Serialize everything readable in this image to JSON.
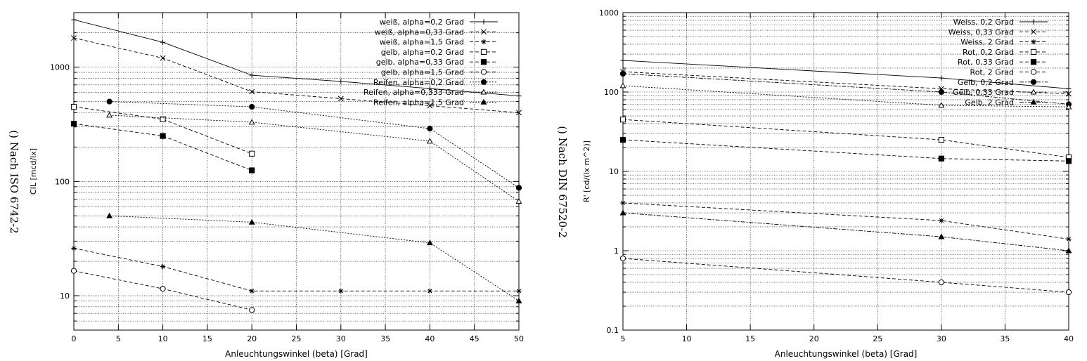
{
  "side_labels": {
    "left": "() Nach ISO 6742-2",
    "right": "() Nach DIN 67520-2"
  },
  "chart_data": [
    {
      "type": "line",
      "title": "",
      "xlabel": "Anleuchtungswinkel (beta) [Grad]",
      "ylabel": "CIL [mcd/lx]",
      "yscale": "log",
      "xlim": [
        0,
        50
      ],
      "ylim": [
        5,
        3000
      ],
      "xticks": [
        0,
        5,
        10,
        15,
        20,
        25,
        30,
        35,
        40,
        45,
        50
      ],
      "yticks": [
        10,
        100,
        1000
      ],
      "grid": true,
      "legend_position": "top-right",
      "series": [
        {
          "name": "weiß, alpha=0,2 Grad",
          "marker": "plus",
          "dash": "solid",
          "x": [
            0,
            10,
            20,
            30,
            40,
            50
          ],
          "y": [
            2600,
            1650,
            850,
            750,
            650,
            560
          ]
        },
        {
          "name": "weiß, alpha=0,33 Grad",
          "marker": "cross",
          "dash": "dashed",
          "x": [
            0,
            10,
            20,
            30,
            40,
            50
          ],
          "y": [
            1800,
            1200,
            610,
            530,
            460,
            400
          ]
        },
        {
          "name": "weiß, alpha=1,5 Grad",
          "marker": "star",
          "dash": "dashed",
          "x": [
            0,
            10,
            20,
            30,
            40,
            50
          ],
          "y": [
            26,
            18,
            11,
            11,
            11,
            11
          ]
        },
        {
          "name": "gelb, alpha=0,2 Grad",
          "marker": "open-square",
          "dash": "dashed",
          "x": [
            0,
            10,
            20
          ],
          "y": [
            450,
            350,
            175
          ]
        },
        {
          "name": "gelb, alpha=0,33 Grad",
          "marker": "filled-square",
          "dash": "dashed",
          "x": [
            0,
            10,
            20
          ],
          "y": [
            320,
            250,
            125
          ]
        },
        {
          "name": "gelb, alpha=1,5 Grad",
          "marker": "open-circle",
          "dash": "dashed",
          "x": [
            0,
            10,
            20
          ],
          "y": [
            16.5,
            11.5,
            7.5
          ]
        },
        {
          "name": "Reifen, alpha=0,2 Grad",
          "marker": "filled-circle",
          "dash": "dotted",
          "x": [
            4,
            20,
            40,
            50
          ],
          "y": [
            500,
            450,
            290,
            88
          ]
        },
        {
          "name": "Reifen, alpha=0,333 Grad",
          "marker": "open-triangle",
          "dash": "dotted",
          "x": [
            4,
            20,
            40,
            50
          ],
          "y": [
            380,
            330,
            225,
            67
          ]
        },
        {
          "name": "Reifen, alpha=1,5 Grad",
          "marker": "filled-triangle",
          "dash": "dotted",
          "x": [
            4,
            20,
            40,
            50
          ],
          "y": [
            50,
            44,
            29,
            9
          ]
        }
      ]
    },
    {
      "type": "line",
      "title": "",
      "xlabel": "Anleuchtungswinkel (beta) [Grad]",
      "ylabel": "R' [cd/(lx m^2)]",
      "yscale": "log",
      "xlim": [
        5,
        40
      ],
      "ylim": [
        0.1,
        1000
      ],
      "xticks": [
        5,
        10,
        15,
        20,
        25,
        30,
        35,
        40
      ],
      "yticks": [
        0.1,
        1,
        10,
        100,
        1000
      ],
      "grid": true,
      "legend_position": "top-right",
      "series": [
        {
          "name": "Weiss, 0,2 Grad",
          "marker": "plus",
          "dash": "solid",
          "x": [
            5,
            30,
            40
          ],
          "y": [
            250,
            150,
            110
          ]
        },
        {
          "name": "Weiss, 0,33 Grad",
          "marker": "cross",
          "dash": "dashed",
          "x": [
            5,
            30,
            40
          ],
          "y": [
            180,
            110,
            95
          ]
        },
        {
          "name": "Weiss, 2 Grad",
          "marker": "star",
          "dash": "dashed",
          "x": [
            5,
            30,
            40
          ],
          "y": [
            4,
            2.4,
            1.4
          ]
        },
        {
          "name": "Rot, 0,2 Grad",
          "marker": "open-square",
          "dash": "dashed",
          "x": [
            5,
            30,
            40
          ],
          "y": [
            45,
            25,
            15
          ]
        },
        {
          "name": "Rot, 0,33 Grad",
          "marker": "filled-square",
          "dash": "dashed",
          "x": [
            5,
            30,
            40
          ],
          "y": [
            25,
            14.5,
            13.5
          ]
        },
        {
          "name": "Rot, 2 Grad",
          "marker": "open-circle",
          "dash": "dashed",
          "x": [
            5,
            30,
            40
          ],
          "y": [
            0.8,
            0.4,
            0.3
          ]
        },
        {
          "name": "Gelb, 0,2 Grad",
          "marker": "filled-circle",
          "dash": "dashdot",
          "x": [
            5,
            30,
            40
          ],
          "y": [
            170,
            100,
            70
          ]
        },
        {
          "name": "Gelb, 0,33 Grad",
          "marker": "open-triangle",
          "dash": "dotted",
          "x": [
            5,
            30,
            40
          ],
          "y": [
            120,
            68,
            65
          ]
        },
        {
          "name": "Gelb, 2 Grad",
          "marker": "filled-triangle",
          "dash": "dashdot",
          "x": [
            5,
            30,
            40
          ],
          "y": [
            3,
            1.5,
            1
          ]
        }
      ]
    }
  ]
}
